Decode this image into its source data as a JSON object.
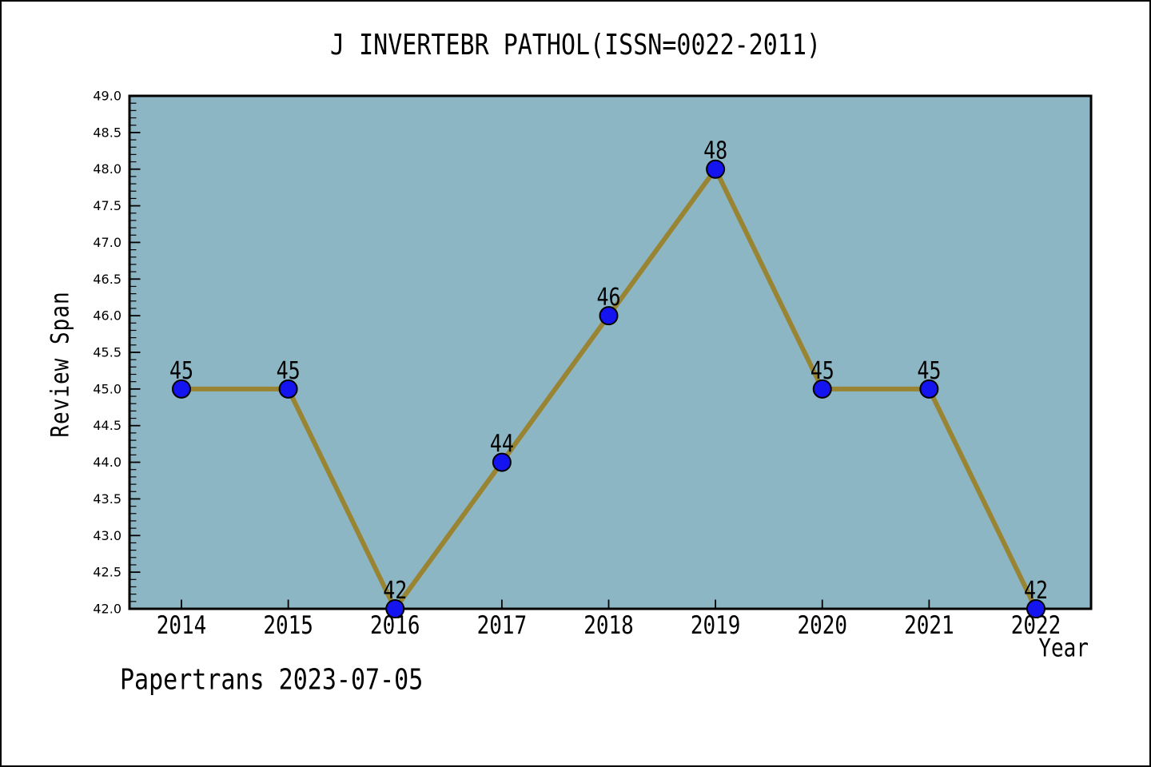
{
  "page": {
    "footer": "Papertrans 2023-07-05"
  },
  "chart_data": {
    "type": "line",
    "title": "J INVERTEBR PATHOL(ISSN=0022-2011)",
    "xlabel": "Year",
    "ylabel": "Review Span",
    "categories": [
      2014,
      2015,
      2016,
      2017,
      2018,
      2019,
      2020,
      2021,
      2022
    ],
    "values": [
      45,
      45,
      42,
      44,
      46,
      48,
      45,
      45,
      42
    ],
    "data_labels": [
      "45",
      "45",
      "42",
      "44",
      "46",
      "48",
      "45",
      "45",
      "42"
    ],
    "ylim": [
      42.0,
      49.0
    ],
    "y_major_tick_step": 0.5,
    "y_minor_tick_step": 0.1,
    "grid": false,
    "legend": "none",
    "marker": "circle",
    "tick_direction": "in",
    "colors": {
      "plot_background": "#8DB6C4",
      "line": "#998433",
      "marker_fill": "#1414F0",
      "marker_edge": "#000000",
      "axis": "#000000",
      "text": "#000000",
      "page_background": "#FFFFFF"
    }
  }
}
